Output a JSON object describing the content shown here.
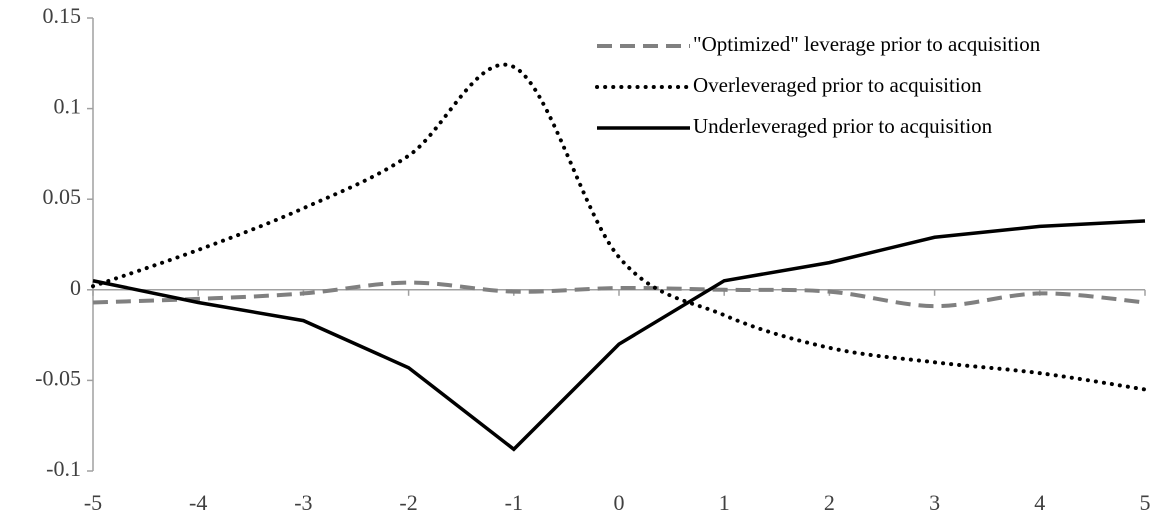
{
  "chart_data": {
    "type": "line",
    "x": [
      -5,
      -4,
      -3,
      -2,
      -1,
      0,
      1,
      2,
      3,
      4,
      5
    ],
    "series": [
      {
        "name": "\"Optimized\" leverage prior to acquisition",
        "color": "#808080",
        "style": "dashed",
        "smooth": true,
        "values": [
          -0.007,
          -0.005,
          -0.002,
          0.004,
          -0.001,
          0.001,
          0,
          -0.001,
          -0.009,
          -0.002,
          -0.007
        ]
      },
      {
        "name": "Overleveraged prior to acquisition",
        "color": "#000000",
        "style": "dotted",
        "smooth": true,
        "values": [
          0.002,
          0.022,
          0.045,
          0.074,
          0.123,
          0.018,
          -0.014,
          -0.032,
          -0.04,
          -0.046,
          -0.055
        ]
      },
      {
        "name": "Underleveraged prior to acquisition",
        "color": "#000000",
        "style": "solid",
        "smooth": false,
        "values": [
          0.005,
          -0.007,
          -0.017,
          -0.043,
          -0.088,
          -0.03,
          0.005,
          0.015,
          0.029,
          0.035,
          0.038
        ]
      }
    ],
    "xlim": [
      -5,
      5
    ],
    "xticks": [
      -5,
      -4,
      -3,
      -2,
      -1,
      0,
      1,
      2,
      3,
      4,
      5
    ],
    "ylim": [
      -0.1,
      0.15
    ],
    "yticks": [
      -0.1,
      -0.05,
      0,
      0.05,
      0.1,
      0.15
    ],
    "grid": false,
    "legend": "upper right"
  }
}
